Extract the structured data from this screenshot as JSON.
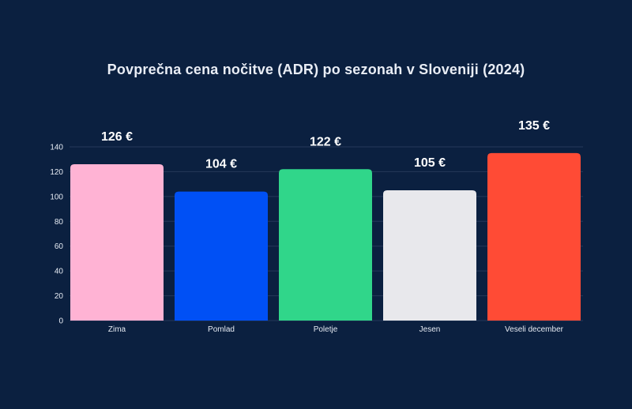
{
  "chart_data": {
    "type": "bar",
    "title": "Povprečna cena nočitve (ADR) po sezonah v Sloveniji (2024)",
    "xlabel": "",
    "ylabel": "",
    "categories": [
      "Zima",
      "Pomlad",
      "Poletje",
      "Jesen",
      "Veseli december"
    ],
    "values": [
      126,
      104,
      122,
      105,
      135
    ],
    "data_labels": [
      "126 €",
      "104 €",
      "122 €",
      "105 €",
      "135 €"
    ],
    "colors": [
      "#ffb3d4",
      "#0050f5",
      "#30d68a",
      "#e8e8ec",
      "#ff4b35"
    ],
    "ylim": [
      0,
      140
    ],
    "yticks": [
      0,
      20,
      40,
      60,
      80,
      100,
      120,
      140
    ],
    "grid": true,
    "legend": "none"
  },
  "colors": {
    "background": "#0b2040",
    "grid": "#26395a",
    "text": "#e6ebf3"
  }
}
